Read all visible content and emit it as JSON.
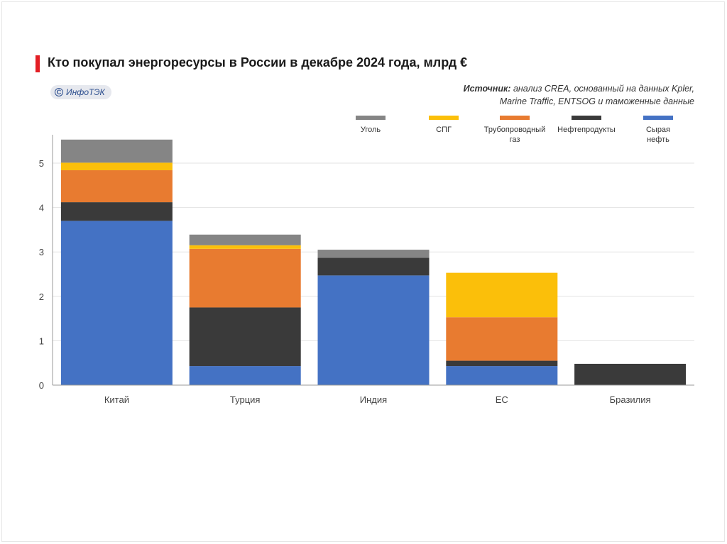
{
  "header": {
    "title": "Кто покупал энергоресурсы в России в декабре 2024 года, млрд €",
    "badge": "ИнфоТЭК",
    "source_label": "Источник:",
    "source_line1": "анализ CREA, основанный на данных Kpler,",
    "source_line2": "Marine Traffic, ENTSOG и таможенные данные"
  },
  "chart_data": {
    "type": "bar",
    "stacked": true,
    "categories": [
      "Китай",
      "Турция",
      "Индия",
      "ЕС",
      "Бразилия"
    ],
    "series": [
      {
        "name": "Сырая нефть",
        "color": "#4472c4",
        "values": [
          3.7,
          0.43,
          2.47,
          0.43,
          0
        ]
      },
      {
        "name": "Нефтепродукты",
        "color": "#3a3a3a",
        "values": [
          0.42,
          1.32,
          0.4,
          0.12,
          0.48
        ]
      },
      {
        "name": "Трубопроводный газ",
        "color": "#e87b30",
        "values": [
          0.72,
          1.32,
          0,
          0.98,
          0
        ]
      },
      {
        "name": "СПГ",
        "color": "#fbbf0a",
        "values": [
          0.17,
          0.08,
          0,
          1.0,
          0
        ]
      },
      {
        "name": "Уголь",
        "color": "#858585",
        "values": [
          0.52,
          0.24,
          0.18,
          0,
          0
        ]
      }
    ],
    "legend_order": [
      "Уголь",
      "СПГ",
      "Трубопроводный газ",
      "Нефтепродукты",
      "Сырая нефть"
    ],
    "legend_labels": {
      "Уголь": [
        "Уголь"
      ],
      "СПГ": [
        "СПГ"
      ],
      "Трубопроводный газ": [
        "Трубопроводный",
        "газ"
      ],
      "Нефтепродукты": [
        "Нефтепродукты"
      ],
      "Сырая нефть": [
        "Сырая",
        "нефть"
      ]
    },
    "yticks": [
      0,
      1,
      2,
      3,
      4,
      5
    ],
    "ylim": [
      0,
      5.5
    ],
    "grid": true,
    "legend_position": "top-right",
    "xlabel": "",
    "ylabel": ""
  }
}
